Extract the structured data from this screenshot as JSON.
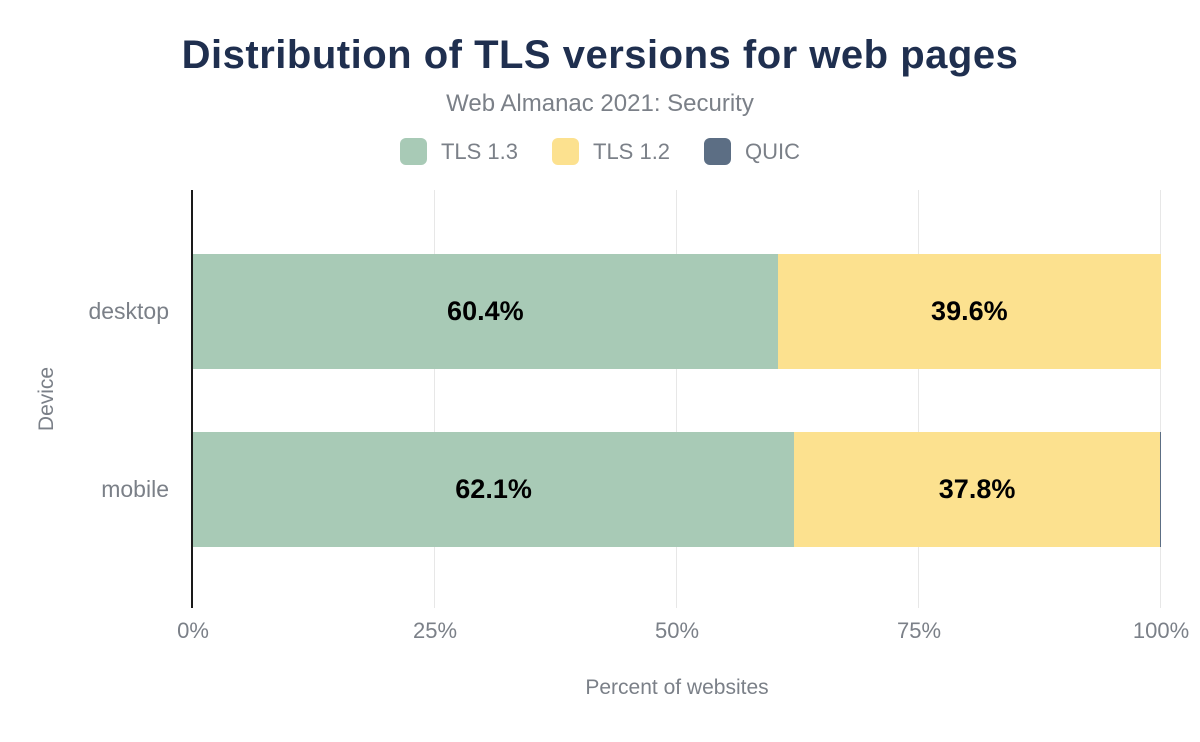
{
  "title": "Distribution of TLS versions for web pages",
  "subtitle": "Web Almanac 2021: Security",
  "colors": {
    "title_text": "#1f2f4f",
    "muted_text": "#7b8088",
    "bar_label_text": "#000000",
    "axis_line": "#1a1a1a",
    "gridline": "#e7e7e7",
    "background": "#ffffff",
    "tls13": "#a8cab6",
    "tls12": "#fce18f",
    "quic": "#5c6e84"
  },
  "legend": [
    {
      "label": "TLS 1.3",
      "color": "#a8cab6"
    },
    {
      "label": "TLS 1.2",
      "color": "#fce18f"
    },
    {
      "label": "QUIC",
      "color": "#5c6e84"
    }
  ],
  "chart_data": {
    "type": "bar",
    "orientation": "horizontal",
    "stacked": true,
    "title": "Distribution of TLS versions for web pages",
    "subtitle": "Web Almanac 2021: Security",
    "categories": [
      "desktop",
      "mobile"
    ],
    "series": [
      {
        "name": "TLS 1.3",
        "color": "#a8cab6",
        "values": [
          60.4,
          62.1
        ],
        "labels": [
          "60.4%",
          "62.1%"
        ]
      },
      {
        "name": "TLS 1.2",
        "color": "#fce18f",
        "values": [
          39.6,
          37.8
        ],
        "labels": [
          "39.6%",
          "37.8%"
        ]
      },
      {
        "name": "QUIC",
        "color": "#5c6e84",
        "values": [
          0.0,
          0.1
        ],
        "labels": [
          "",
          ""
        ]
      }
    ],
    "xlabel": "Percent of websites",
    "ylabel": "Device",
    "xlim": [
      0,
      100
    ],
    "xticks": [
      {
        "value": 0,
        "label": "0%"
      },
      {
        "value": 25,
        "label": "25%"
      },
      {
        "value": 50,
        "label": "50%"
      },
      {
        "value": 75,
        "label": "75%"
      },
      {
        "value": 100,
        "label": "100%"
      }
    ],
    "grid": true,
    "legend_position": "top"
  }
}
